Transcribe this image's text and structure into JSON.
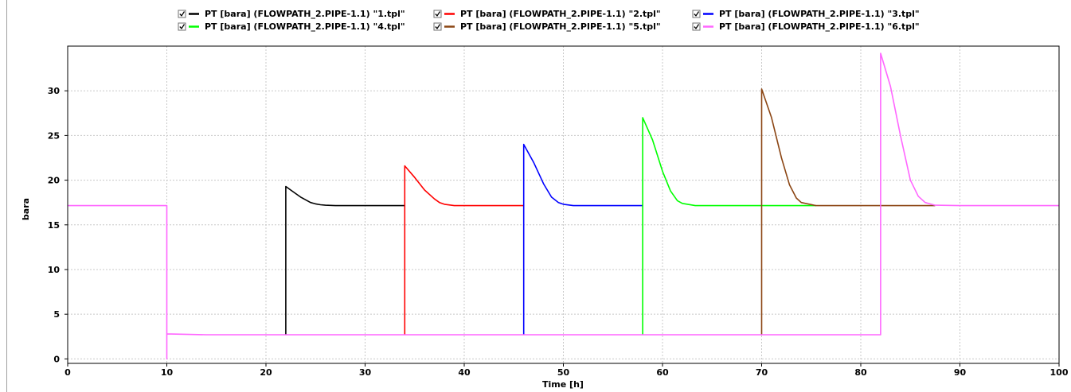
{
  "chart_data": {
    "type": "line",
    "xlabel": "Time [h]",
    "ylabel": "bara",
    "xlim": [
      0,
      100
    ],
    "ylim": [
      -0.5,
      35
    ],
    "x_ticks": [
      "0",
      "10",
      "20",
      "30",
      "40",
      "50",
      "60",
      "70",
      "80",
      "90",
      "100"
    ],
    "y_ticks": [
      "0",
      "5",
      "10",
      "15",
      "20",
      "25",
      "30"
    ],
    "grid": true,
    "legend_position": "top",
    "series": [
      {
        "name": "PT [bara] (FLOWPATH_2.PIPE-1.1) \"1.tpl\"",
        "color": "#000000",
        "x": [
          22,
          22,
          22.5,
          23,
          23.5,
          24,
          24.5,
          25,
          25.5,
          26,
          27,
          29,
          34
        ],
        "y": [
          2.7,
          19.3,
          18.9,
          18.5,
          18.1,
          17.8,
          17.5,
          17.35,
          17.25,
          17.2,
          17.15,
          17.15,
          17.15
        ]
      },
      {
        "name": "PT [bara] (FLOWPATH_2.PIPE-1.1) \"2.tpl\"",
        "color": "#ff0000",
        "x": [
          34,
          34,
          35,
          36,
          37,
          37.5,
          38,
          39,
          46
        ],
        "y": [
          2.7,
          21.6,
          20.3,
          18.9,
          17.9,
          17.5,
          17.3,
          17.15,
          17.15
        ]
      },
      {
        "name": "PT [bara] (FLOWPATH_2.PIPE-1.1) \"3.tpl\"",
        "color": "#0000ff",
        "x": [
          46,
          46,
          47,
          48,
          48.8,
          49.5,
          50,
          51,
          58
        ],
        "y": [
          2.7,
          24,
          22,
          19.6,
          18.1,
          17.5,
          17.3,
          17.15,
          17.15
        ]
      },
      {
        "name": "PT [bara] (FLOWPATH_2.PIPE-1.1) \"4.tpl\"",
        "color": "#00ff00",
        "x": [
          58,
          58,
          59,
          60,
          60.8,
          61.5,
          62,
          63.3,
          75.5
        ],
        "y": [
          2.7,
          27,
          24.5,
          21,
          18.8,
          17.7,
          17.4,
          17.15,
          17.15
        ]
      },
      {
        "name": "PT [bara] (FLOWPATH_2.PIPE-1.1) \"5.tpl\"",
        "color": "#8b4513",
        "x": [
          70,
          70,
          71,
          72,
          72.8,
          73.5,
          74,
          75.5,
          87.5
        ],
        "y": [
          2.7,
          30.2,
          27,
          22.5,
          19.5,
          18,
          17.5,
          17.15,
          17.15
        ]
      },
      {
        "name": "PT [bara] (FLOWPATH_2.PIPE-1.1) \"6.tpl\"",
        "color": "#ff66ff",
        "x": [
          0,
          10,
          10,
          10,
          14,
          82,
          82,
          83,
          84,
          85,
          85.8,
          86.5,
          87.5,
          90,
          100
        ],
        "y": [
          17.15,
          17.15,
          0,
          2.8,
          2.7,
          2.7,
          34.2,
          30.5,
          25,
          20,
          18.2,
          17.5,
          17.2,
          17.15,
          17.15
        ]
      }
    ]
  }
}
